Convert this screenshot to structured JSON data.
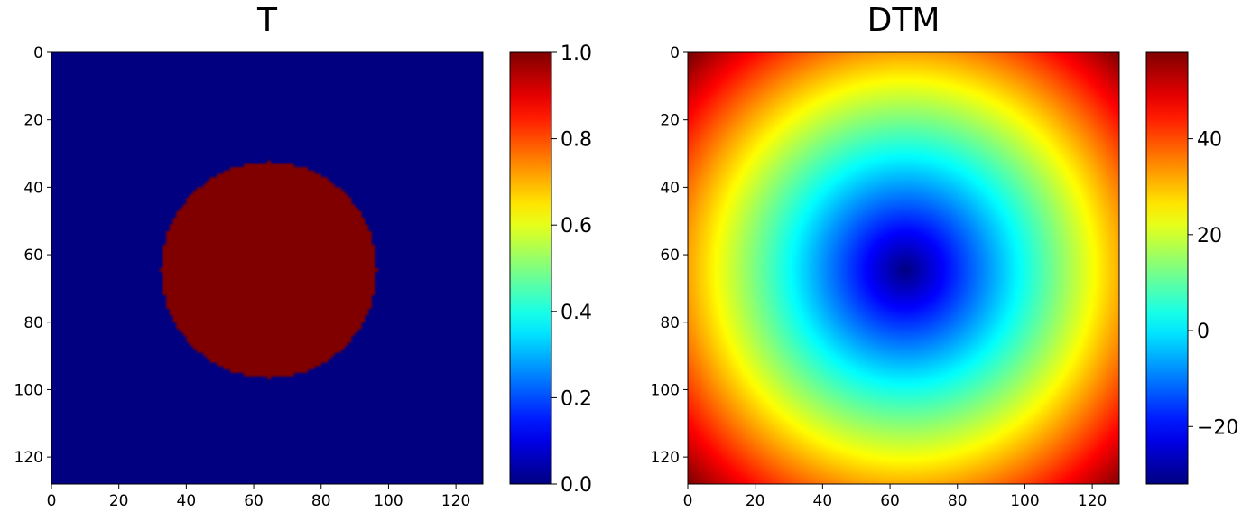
{
  "chart_data": [
    {
      "type": "heatmap",
      "title": "T",
      "colormap": "jet",
      "grid": false,
      "xlim": [
        0,
        128
      ],
      "ylim": [
        128,
        0
      ],
      "x_ticks": [
        "0",
        "20",
        "40",
        "60",
        "80",
        "100",
        "120"
      ],
      "y_ticks": [
        "0",
        "20",
        "40",
        "60",
        "80",
        "100",
        "120"
      ],
      "x_tick_values": [
        0,
        20,
        40,
        60,
        80,
        100,
        120
      ],
      "y_tick_values": [
        0,
        20,
        40,
        60,
        80,
        100,
        120
      ],
      "field": {
        "kind": "binary-disk",
        "center": [
          64,
          64
        ],
        "radius": 32,
        "inside": 1.0,
        "outside": 0.0
      },
      "colorbar": {
        "range": [
          0,
          1
        ],
        "ticks": [
          "0.0",
          "0.2",
          "0.4",
          "0.6",
          "0.8",
          "1.0"
        ],
        "tick_values": [
          0,
          0.2,
          0.4,
          0.6,
          0.8,
          1.0
        ]
      }
    },
    {
      "type": "heatmap",
      "title": "DTM",
      "colormap": "jet",
      "grid": false,
      "xlim": [
        0,
        128
      ],
      "ylim": [
        128,
        0
      ],
      "x_ticks": [
        "0",
        "20",
        "40",
        "60",
        "80",
        "100",
        "120"
      ],
      "y_ticks": [
        "0",
        "20",
        "40",
        "60",
        "80",
        "100",
        "120"
      ],
      "x_tick_values": [
        0,
        20,
        40,
        60,
        80,
        100,
        120
      ],
      "y_tick_values": [
        0,
        20,
        40,
        60,
        80,
        100,
        120
      ],
      "field": {
        "kind": "signed-distance",
        "center": [
          64,
          64
        ],
        "radius": 32,
        "min": -32,
        "max": 58
      },
      "colorbar": {
        "range": [
          -32,
          58
        ],
        "ticks": [
          "−20",
          "0",
          "20",
          "40"
        ],
        "tick_values": [
          -20,
          0,
          20,
          40
        ]
      }
    }
  ]
}
